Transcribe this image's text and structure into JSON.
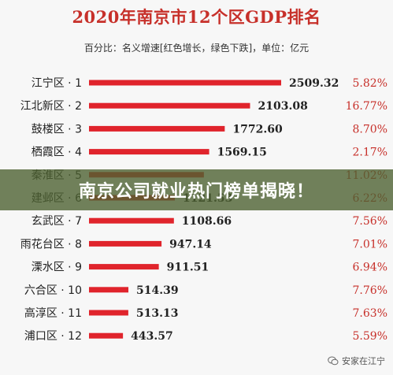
{
  "header": {
    "title": "2020年南京市12个区GDP排名",
    "subtitle": "百分比：名义增速[红色增长，绿色下跌]，单位：亿元"
  },
  "banner": {
    "text": "南京公司就业热门榜单揭晓！"
  },
  "watermark": {
    "text": "安家在江宁",
    "icon": "wechat-icon"
  },
  "colors": {
    "bar": "#e0242c",
    "title": "#c7302a",
    "percent": "#c7302a",
    "banner_bg": "#4e6232"
  },
  "chart_data": {
    "type": "bar",
    "orientation": "horizontal",
    "title": "2020年南京市12个区GDP排名",
    "subtitle": "百分比：名义增速[红色增长，绿色下跌]，单位：亿元",
    "categories": [
      "江宁区 · 1",
      "江北新区 · 2",
      "鼓楼区 · 3",
      "栖霞区 · 4",
      "秦淮区 · 5",
      "建邺区 · 6",
      "玄武区 · 7",
      "雨花台区 · 8",
      "溧水区 · 9",
      "六合区 · 10",
      "高淳区 · 11",
      "浦口区 · 12"
    ],
    "values": [
      2509.32,
      2103.08,
      1772.6,
      1569.15,
      1500,
      1121.53,
      1108.66,
      947.14,
      911.51,
      514.39,
      513.13,
      443.57
    ],
    "value_labels": [
      "2509.32",
      "2103.08",
      "1772.60",
      "1569.15",
      "",
      "1121.53",
      "1108.66",
      "947.14",
      "911.51",
      "514.39",
      "513.13",
      "443.57"
    ],
    "growth_labels": [
      "5.82%",
      "16.77%",
      "8.70%",
      "2.17%",
      "11.02%",
      "6.22%",
      "7.56%",
      "7.01%",
      "6.94%",
      "7.76%",
      "7.63%",
      "5.59%"
    ],
    "xlim": [
      0,
      2509.32
    ],
    "grid": false,
    "legend": "none"
  }
}
